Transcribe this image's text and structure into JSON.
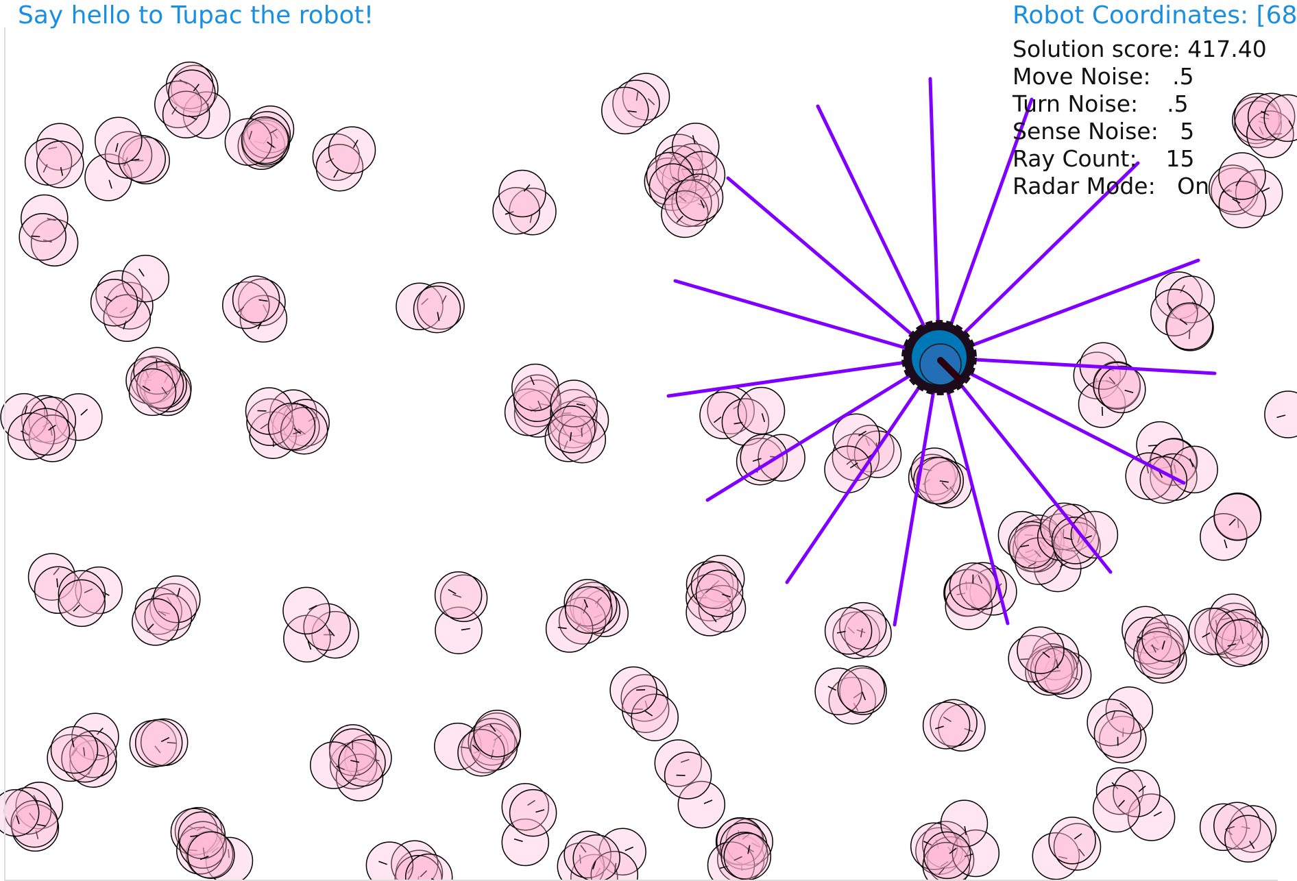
{
  "header": {
    "greeting": "Say hello to Tupac the robot!",
    "robot_coordinates": "Robot Coordinates: [68"
  },
  "stats": [
    {
      "label": "Solution score:",
      "value": "417.40"
    },
    {
      "label": "Move Noise:",
      "value": ".5"
    },
    {
      "label": "Turn Noise:",
      "value": ".5"
    },
    {
      "label": "Sense Noise:",
      "value": "5"
    },
    {
      "label": "Ray Count:",
      "value": "15"
    },
    {
      "label": "Radar Mode:",
      "value": "On"
    }
  ],
  "colors": {
    "particle_fill": "#ffb6d5",
    "particle_stroke": "#000000",
    "ray": "#8000ff",
    "robot_body": "#0077b6",
    "robot_ring": "#1b0b1b",
    "title": "#1a8fe0"
  },
  "icons": {
    "robot": "robot-icon",
    "particle": "particle-icon"
  }
}
